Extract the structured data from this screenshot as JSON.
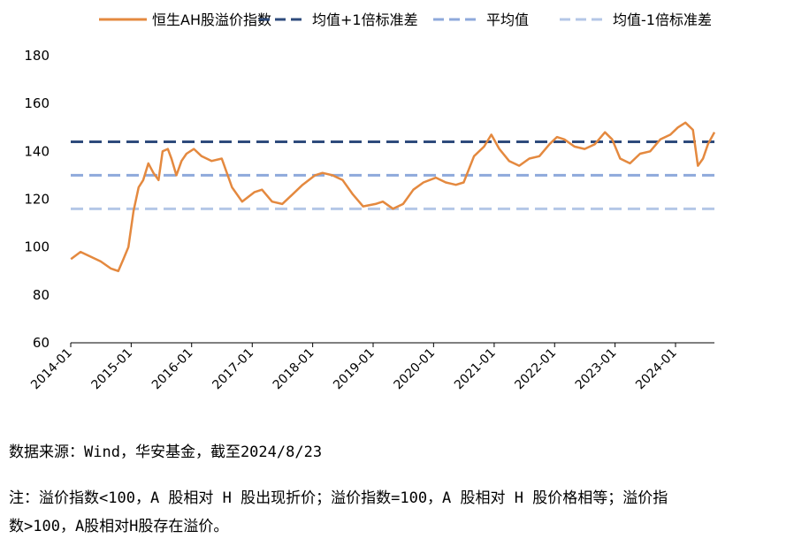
{
  "chart_data": {
    "type": "line",
    "title": "",
    "xlabel": "",
    "ylabel": "",
    "ylim": [
      60,
      180
    ],
    "yticks": [
      60,
      80,
      100,
      120,
      140,
      160,
      180
    ],
    "xticks": [
      "2014-01",
      "2015-01",
      "2016-01",
      "2017-01",
      "2018-01",
      "2019-01",
      "2020-01",
      "2021-01",
      "2022-01",
      "2023-01",
      "2024-01"
    ],
    "xrange": [
      "2014-01-01",
      "2024-08-23"
    ],
    "grid": false,
    "legend_position": "top",
    "series": [
      {
        "name": "恒生AH股溢价指数",
        "style": "solid",
        "color": "#E4893F",
        "points": [
          [
            "2014-01-02",
            95
          ],
          [
            "2014-03-01",
            98
          ],
          [
            "2014-05-01",
            96
          ],
          [
            "2014-07-01",
            94
          ],
          [
            "2014-09-01",
            91
          ],
          [
            "2014-10-15",
            90
          ],
          [
            "2014-11-15",
            95
          ],
          [
            "2014-12-15",
            100
          ],
          [
            "2015-01-15",
            115
          ],
          [
            "2015-02-15",
            125
          ],
          [
            "2015-03-15",
            128
          ],
          [
            "2015-04-15",
            135
          ],
          [
            "2015-05-15",
            131
          ],
          [
            "2015-06-15",
            128
          ],
          [
            "2015-07-10",
            140
          ],
          [
            "2015-08-10",
            141
          ],
          [
            "2015-09-01",
            137
          ],
          [
            "2015-10-01",
            130
          ],
          [
            "2015-11-01",
            136
          ],
          [
            "2015-12-01",
            139
          ],
          [
            "2016-01-15",
            141
          ],
          [
            "2016-03-01",
            138
          ],
          [
            "2016-05-01",
            136
          ],
          [
            "2016-07-01",
            137
          ],
          [
            "2016-09-01",
            125
          ],
          [
            "2016-11-01",
            119
          ],
          [
            "2017-01-15",
            123
          ],
          [
            "2017-03-01",
            124
          ],
          [
            "2017-05-01",
            119
          ],
          [
            "2017-07-01",
            118
          ],
          [
            "2017-09-01",
            122
          ],
          [
            "2017-11-01",
            126
          ],
          [
            "2018-01-15",
            130
          ],
          [
            "2018-03-01",
            131
          ],
          [
            "2018-05-01",
            130
          ],
          [
            "2018-07-01",
            128
          ],
          [
            "2018-09-01",
            122
          ],
          [
            "2018-11-01",
            117
          ],
          [
            "2019-01-15",
            118
          ],
          [
            "2019-03-01",
            119
          ],
          [
            "2019-05-01",
            116
          ],
          [
            "2019-07-01",
            118
          ],
          [
            "2019-09-01",
            124
          ],
          [
            "2019-11-01",
            127
          ],
          [
            "2020-01-15",
            129
          ],
          [
            "2020-03-15",
            127
          ],
          [
            "2020-05-15",
            126
          ],
          [
            "2020-07-01",
            127
          ],
          [
            "2020-09-01",
            138
          ],
          [
            "2020-11-01",
            142
          ],
          [
            "2020-12-15",
            147
          ],
          [
            "2021-02-01",
            141
          ],
          [
            "2021-04-01",
            136
          ],
          [
            "2021-06-01",
            134
          ],
          [
            "2021-08-01",
            137
          ],
          [
            "2021-10-01",
            138
          ],
          [
            "2021-12-01",
            143
          ],
          [
            "2022-01-15",
            146
          ],
          [
            "2022-03-01",
            145
          ],
          [
            "2022-05-01",
            142
          ],
          [
            "2022-07-01",
            141
          ],
          [
            "2022-09-01",
            143
          ],
          [
            "2022-11-01",
            148
          ],
          [
            "2022-12-15",
            145
          ],
          [
            "2023-02-01",
            137
          ],
          [
            "2023-04-01",
            135
          ],
          [
            "2023-06-01",
            139
          ],
          [
            "2023-08-01",
            140
          ],
          [
            "2023-10-01",
            145
          ],
          [
            "2023-12-01",
            147
          ],
          [
            "2024-01-15",
            150
          ],
          [
            "2024-03-01",
            152
          ],
          [
            "2024-04-15",
            149
          ],
          [
            "2024-05-15",
            134
          ],
          [
            "2024-06-15",
            137
          ],
          [
            "2024-07-15",
            143
          ],
          [
            "2024-08-23",
            148
          ]
        ]
      },
      {
        "name": "均值+1倍标准差",
        "style": "dashed",
        "color": "#2E4B7C",
        "value": 144
      },
      {
        "name": "平均值",
        "style": "dashed",
        "color": "#8EA9DB",
        "value": 130
      },
      {
        "name": "均值-1倍标准差",
        "style": "dashed",
        "color": "#B4C7E7",
        "value": 116
      }
    ],
    "annotations": {
      "source": "数据来源：Wind，华安基金，截至2024/8/23",
      "note_line1": "注：溢价指数<100，A 股相对 H 股出现折价；溢价指数=100，A 股相对 H 股价格相等；溢价指",
      "note_line2": "数>100，A股相对H股存在溢价。"
    }
  }
}
